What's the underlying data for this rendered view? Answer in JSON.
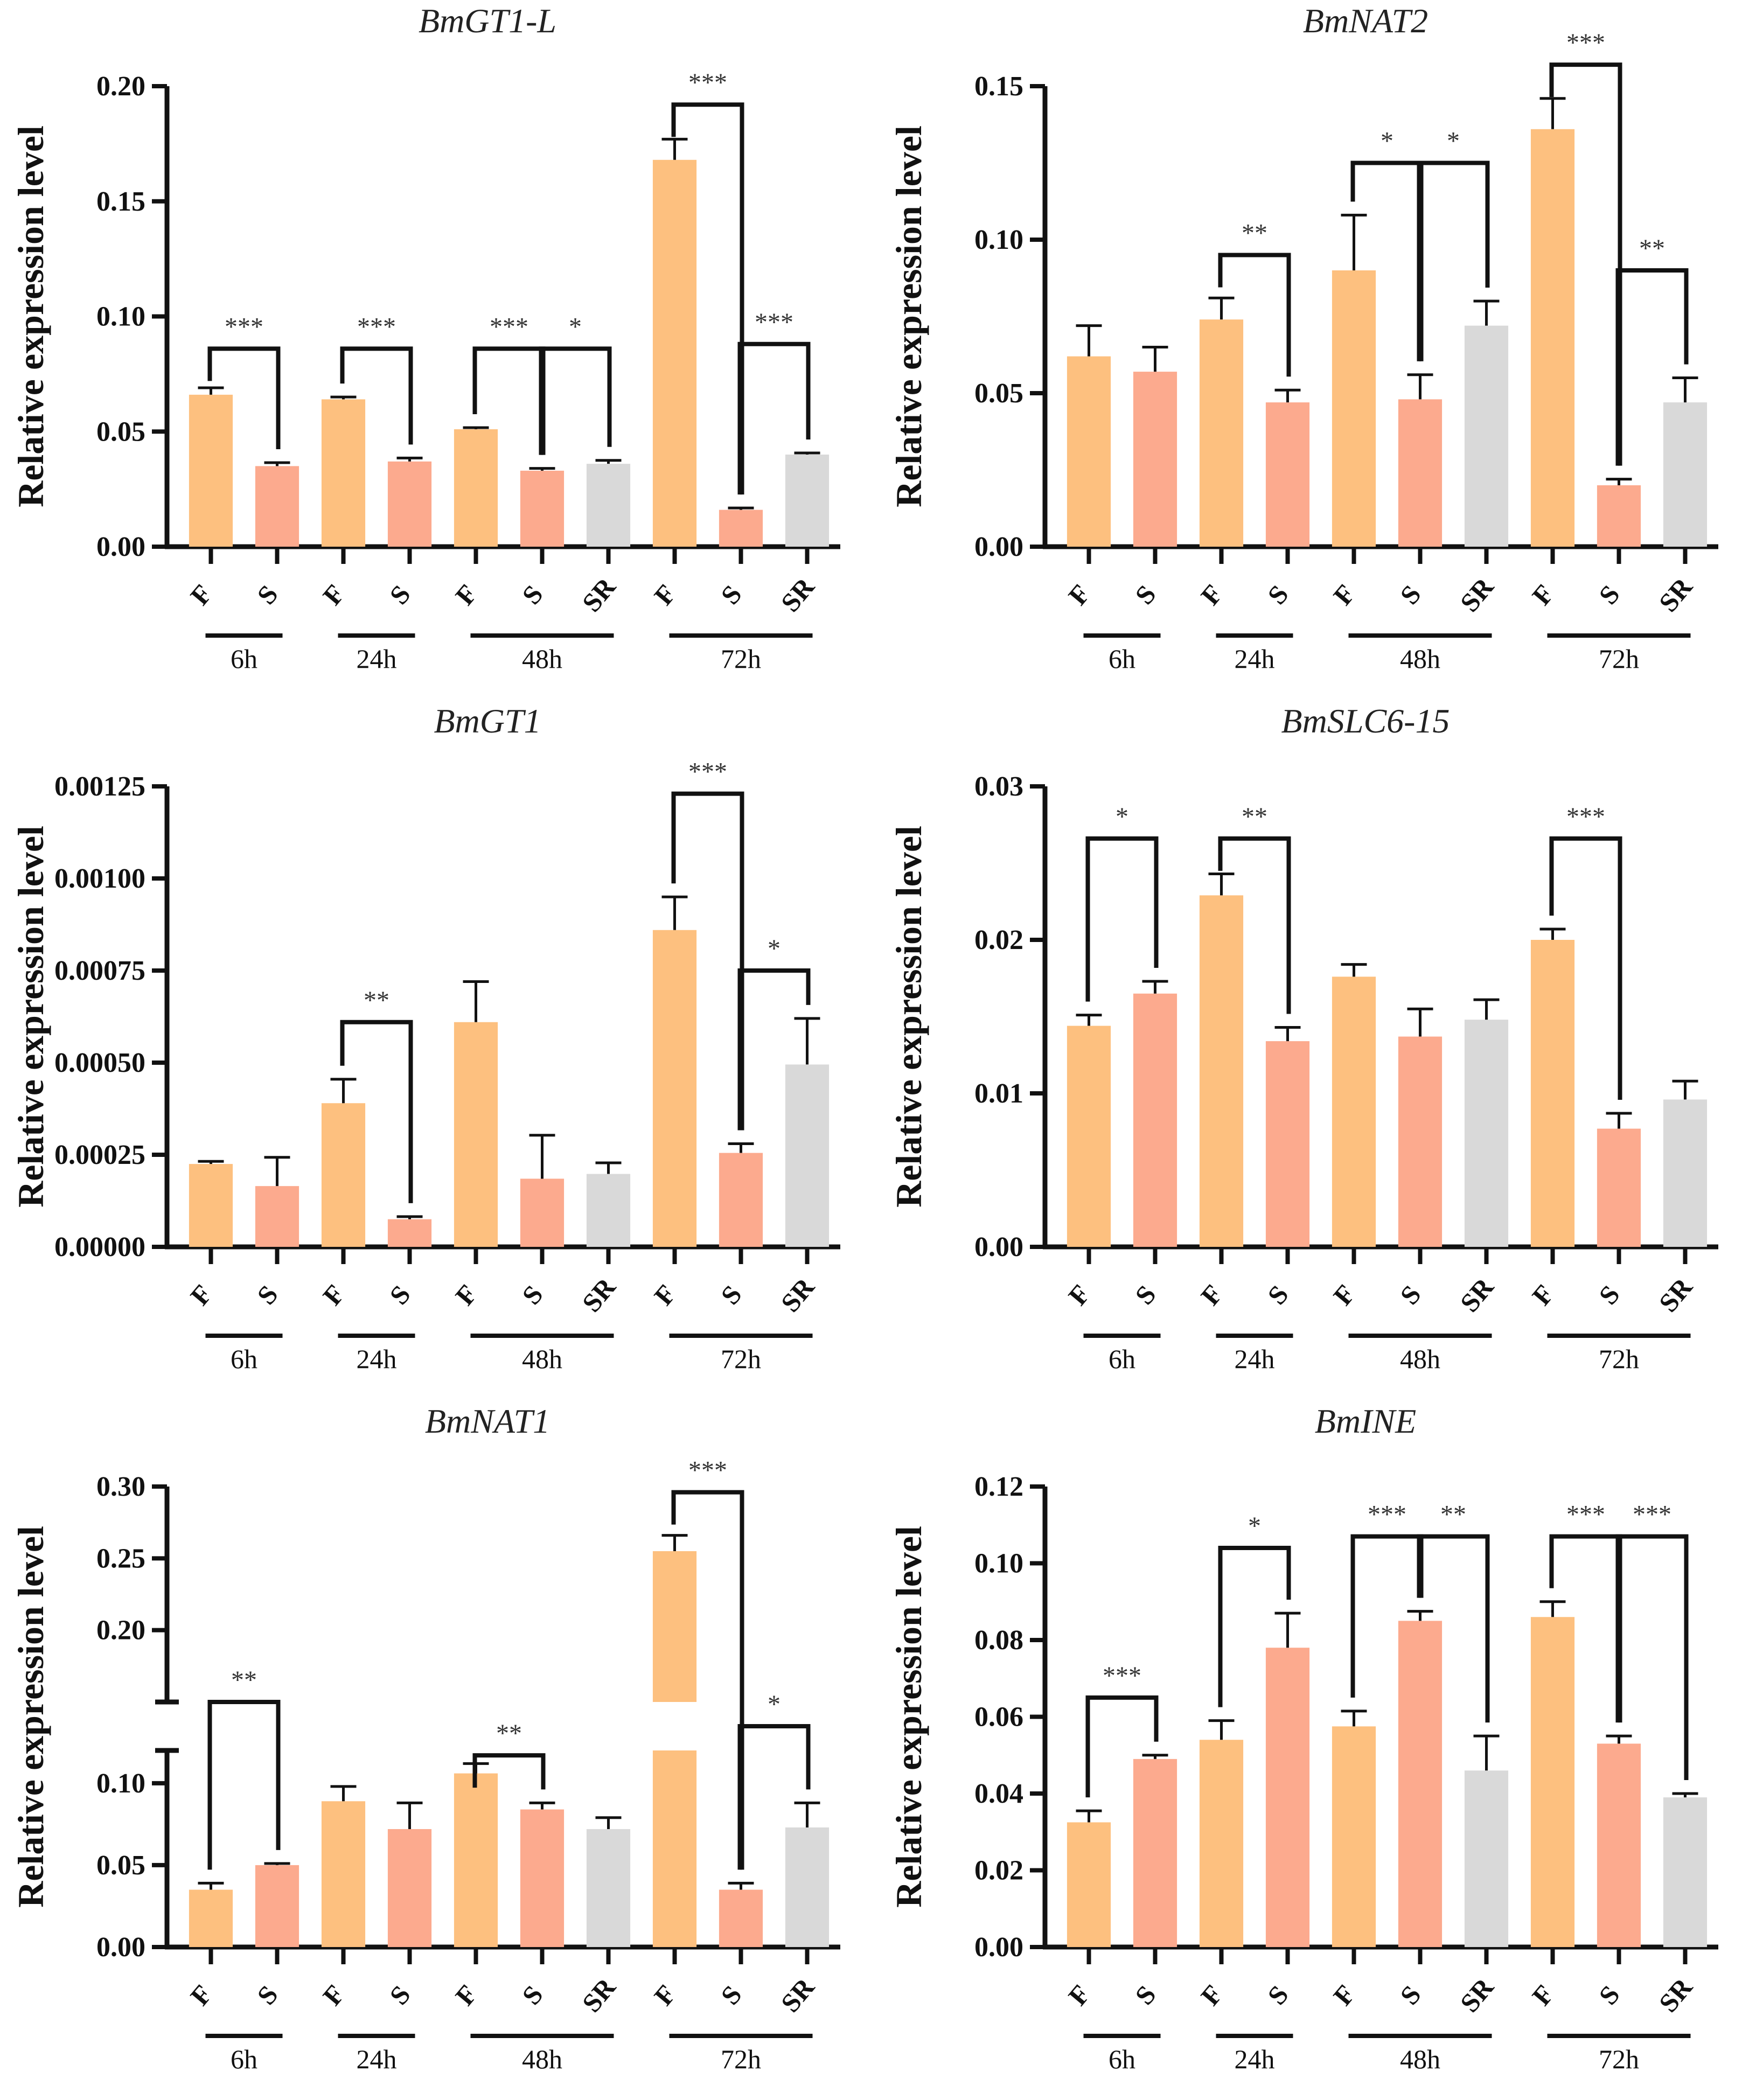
{
  "figure": {
    "ylabel": "Relative expression level",
    "colors": {
      "F": "#FDC07F",
      "S": "#FCAA8E",
      "SR": "#D9D9D9"
    }
  },
  "chart_data": [
    {
      "type": "bar",
      "title": "BmGT1-L",
      "ylabel": "Relative expression level",
      "ylim": [
        0,
        0.2
      ],
      "yticks": [
        "0.00",
        "0.05",
        "0.10",
        "0.15",
        "0.20"
      ],
      "ytick_values": [
        0,
        0.05,
        0.1,
        0.15,
        0.2
      ],
      "groups": [
        {
          "label": "6h",
          "bars": [
            {
              "cat": "F",
              "value": 0.066,
              "err": 0.003
            },
            {
              "cat": "S",
              "value": 0.035,
              "err": 0.0015
            }
          ]
        },
        {
          "label": "24h",
          "bars": [
            {
              "cat": "F",
              "value": 0.064,
              "err": 0.001
            },
            {
              "cat": "S",
              "value": 0.037,
              "err": 0.0015
            }
          ]
        },
        {
          "label": "48h",
          "bars": [
            {
              "cat": "F",
              "value": 0.051,
              "err": 0.0007
            },
            {
              "cat": "S",
              "value": 0.033,
              "err": 0.001
            },
            {
              "cat": "SR",
              "value": 0.036,
              "err": 0.0015
            }
          ]
        },
        {
          "label": "72h",
          "bars": [
            {
              "cat": "F",
              "value": 0.168,
              "err": 0.009
            },
            {
              "cat": "S",
              "value": 0.016,
              "err": 0.0008
            },
            {
              "cat": "SR",
              "value": 0.04,
              "err": 0.0007
            }
          ]
        }
      ],
      "significance": [
        {
          "from": 0,
          "to": 1,
          "y": 0.086,
          "label": "***"
        },
        {
          "from": 2,
          "to": 3,
          "y": 0.086,
          "label": "***"
        },
        {
          "from": 4,
          "to": 5,
          "y": 0.086,
          "label": "***"
        },
        {
          "from": 5,
          "to": 6,
          "y": 0.086,
          "label": "*"
        },
        {
          "from": 7,
          "to": 8,
          "y": 0.192,
          "label": "***"
        },
        {
          "from": 8,
          "to": 9,
          "y": 0.088,
          "label": "***"
        }
      ]
    },
    {
      "type": "bar",
      "title": "BmNAT2",
      "ylabel": "Relative expression level",
      "ylim": [
        0,
        0.15
      ],
      "yticks": [
        "0.00",
        "0.05",
        "0.10",
        "0.15"
      ],
      "ytick_values": [
        0,
        0.05,
        0.1,
        0.15
      ],
      "groups": [
        {
          "label": "6h",
          "bars": [
            {
              "cat": "F",
              "value": 0.062,
              "err": 0.01
            },
            {
              "cat": "S",
              "value": 0.057,
              "err": 0.008
            }
          ]
        },
        {
          "label": "24h",
          "bars": [
            {
              "cat": "F",
              "value": 0.074,
              "err": 0.007
            },
            {
              "cat": "S",
              "value": 0.047,
              "err": 0.004
            }
          ]
        },
        {
          "label": "48h",
          "bars": [
            {
              "cat": "F",
              "value": 0.09,
              "err": 0.018
            },
            {
              "cat": "S",
              "value": 0.048,
              "err": 0.008
            },
            {
              "cat": "SR",
              "value": 0.072,
              "err": 0.008
            }
          ]
        },
        {
          "label": "72h",
          "bars": [
            {
              "cat": "F",
              "value": 0.136,
              "err": 0.01
            },
            {
              "cat": "S",
              "value": 0.02,
              "err": 0.002
            },
            {
              "cat": "SR",
              "value": 0.047,
              "err": 0.008
            }
          ]
        }
      ],
      "significance": [
        {
          "from": 2,
          "to": 3,
          "y": 0.095,
          "label": "**"
        },
        {
          "from": 4,
          "to": 5,
          "y": 0.125,
          "label": "*"
        },
        {
          "from": 5,
          "to": 6,
          "y": 0.125,
          "label": "*"
        },
        {
          "from": 7,
          "to": 8,
          "y": 0.157,
          "label": "***"
        },
        {
          "from": 8,
          "to": 9,
          "y": 0.09,
          "label": "**"
        }
      ]
    },
    {
      "type": "bar",
      "title": "BmGT1",
      "ylabel": "Relative expression level",
      "ylim": [
        0,
        0.00125
      ],
      "yticks": [
        "0.00000",
        "0.00025",
        "0.00050",
        "0.00075",
        "0.00100",
        "0.00125"
      ],
      "ytick_values": [
        0,
        0.00025,
        0.0005,
        0.00075,
        0.001,
        0.00125
      ],
      "groups": [
        {
          "label": "6h",
          "bars": [
            {
              "cat": "F",
              "value": 0.000225,
              "err": 7e-06
            },
            {
              "cat": "S",
              "value": 0.000165,
              "err": 7.8e-05
            }
          ]
        },
        {
          "label": "24h",
          "bars": [
            {
              "cat": "F",
              "value": 0.00039,
              "err": 6.5e-05
            },
            {
              "cat": "S",
              "value": 7.5e-05,
              "err": 7e-06
            }
          ]
        },
        {
          "label": "48h",
          "bars": [
            {
              "cat": "F",
              "value": 0.00061,
              "err": 0.00011
            },
            {
              "cat": "S",
              "value": 0.000185,
              "err": 0.000118
            },
            {
              "cat": "SR",
              "value": 0.000198,
              "err": 3e-05
            }
          ]
        },
        {
          "label": "72h",
          "bars": [
            {
              "cat": "F",
              "value": 0.00086,
              "err": 9e-05
            },
            {
              "cat": "S",
              "value": 0.000255,
              "err": 2.5e-05
            },
            {
              "cat": "SR",
              "value": 0.000495,
              "err": 0.000125
            }
          ]
        }
      ],
      "significance": [
        {
          "from": 2,
          "to": 3,
          "y": 0.00061,
          "label": "**"
        },
        {
          "from": 7,
          "to": 8,
          "y": 0.00123,
          "label": "***"
        },
        {
          "from": 8,
          "to": 9,
          "y": 0.00075,
          "label": "*"
        }
      ]
    },
    {
      "type": "bar",
      "title": "BmSLC6-15",
      "ylabel": "Relative expression level",
      "ylim": [
        0,
        0.03
      ],
      "yticks": [
        "0.00",
        "0.01",
        "0.02",
        "0.03"
      ],
      "ytick_values": [
        0,
        0.01,
        0.02,
        0.03
      ],
      "groups": [
        {
          "label": "6h",
          "bars": [
            {
              "cat": "F",
              "value": 0.0144,
              "err": 0.0007
            },
            {
              "cat": "S",
              "value": 0.0165,
              "err": 0.0008
            }
          ]
        },
        {
          "label": "24h",
          "bars": [
            {
              "cat": "F",
              "value": 0.0229,
              "err": 0.0014
            },
            {
              "cat": "S",
              "value": 0.0134,
              "err": 0.0009
            }
          ]
        },
        {
          "label": "48h",
          "bars": [
            {
              "cat": "F",
              "value": 0.0176,
              "err": 0.0008
            },
            {
              "cat": "S",
              "value": 0.0137,
              "err": 0.0018
            },
            {
              "cat": "SR",
              "value": 0.0148,
              "err": 0.0013
            }
          ]
        },
        {
          "label": "72h",
          "bars": [
            {
              "cat": "F",
              "value": 0.02,
              "err": 0.0007
            },
            {
              "cat": "S",
              "value": 0.0077,
              "err": 0.001
            },
            {
              "cat": "SR",
              "value": 0.0096,
              "err": 0.0012
            }
          ]
        }
      ],
      "significance": [
        {
          "from": 0,
          "to": 1,
          "y": 0.0266,
          "label": "*"
        },
        {
          "from": 2,
          "to": 3,
          "y": 0.0266,
          "label": "**"
        },
        {
          "from": 7,
          "to": 8,
          "y": 0.0266,
          "label": "***"
        }
      ]
    },
    {
      "type": "bar",
      "title": "BmNAT1",
      "ylabel": "Relative expression level",
      "ylim": [
        0,
        0.3
      ],
      "axis_break": {
        "lower": [
          0,
          0.12
        ],
        "upper": [
          0.15,
          0.3
        ]
      },
      "yticks": [
        "0.00",
        "0.05",
        "0.10",
        "0.20",
        "0.25",
        "0.30"
      ],
      "ytick_values": [
        0,
        0.05,
        0.1,
        0.2,
        0.25,
        0.3
      ],
      "groups": [
        {
          "label": "6h",
          "bars": [
            {
              "cat": "F",
              "value": 0.035,
              "err": 0.004
            },
            {
              "cat": "S",
              "value": 0.05,
              "err": 0.001
            }
          ]
        },
        {
          "label": "24h",
          "bars": [
            {
              "cat": "F",
              "value": 0.089,
              "err": 0.009
            },
            {
              "cat": "S",
              "value": 0.072,
              "err": 0.016
            }
          ]
        },
        {
          "label": "48h",
          "bars": [
            {
              "cat": "F",
              "value": 0.106,
              "err": 0.006
            },
            {
              "cat": "S",
              "value": 0.084,
              "err": 0.004
            },
            {
              "cat": "SR",
              "value": 0.072,
              "err": 0.007
            }
          ]
        },
        {
          "label": "72h",
          "bars": [
            {
              "cat": "F",
              "value": 0.255,
              "err": 0.011
            },
            {
              "cat": "S",
              "value": 0.035,
              "err": 0.004
            },
            {
              "cat": "SR",
              "value": 0.073,
              "err": 0.015
            }
          ]
        }
      ],
      "significance": [
        {
          "from": 0,
          "to": 1,
          "y": 0.15,
          "label": "**"
        },
        {
          "from": 4,
          "to": 5,
          "y": 0.117,
          "label": "**"
        },
        {
          "from": 7,
          "to": 8,
          "y": 0.296,
          "label": "***"
        },
        {
          "from": 8,
          "to": 9,
          "y": 0.148,
          "label": "*"
        }
      ]
    },
    {
      "type": "bar",
      "title": "BmINE",
      "ylabel": "Relative expression level",
      "ylim": [
        0,
        0.12
      ],
      "yticks": [
        "0.00",
        "0.02",
        "0.04",
        "0.06",
        "0.08",
        "0.10",
        "0.12"
      ],
      "ytick_values": [
        0,
        0.02,
        0.04,
        0.06,
        0.08,
        0.1,
        0.12
      ],
      "groups": [
        {
          "label": "6h",
          "bars": [
            {
              "cat": "F",
              "value": 0.0325,
              "err": 0.003
            },
            {
              "cat": "S",
              "value": 0.049,
              "err": 0.001
            }
          ]
        },
        {
          "label": "24h",
          "bars": [
            {
              "cat": "F",
              "value": 0.054,
              "err": 0.005
            },
            {
              "cat": "S",
              "value": 0.078,
              "err": 0.009
            }
          ]
        },
        {
          "label": "48h",
          "bars": [
            {
              "cat": "F",
              "value": 0.0575,
              "err": 0.004
            },
            {
              "cat": "S",
              "value": 0.085,
              "err": 0.0025
            },
            {
              "cat": "SR",
              "value": 0.046,
              "err": 0.009
            }
          ]
        },
        {
          "label": "72h",
          "bars": [
            {
              "cat": "F",
              "value": 0.086,
              "err": 0.004
            },
            {
              "cat": "S",
              "value": 0.053,
              "err": 0.002
            },
            {
              "cat": "SR",
              "value": 0.039,
              "err": 0.001
            }
          ]
        }
      ],
      "significance": [
        {
          "from": 0,
          "to": 1,
          "y": 0.065,
          "label": "***"
        },
        {
          "from": 2,
          "to": 3,
          "y": 0.104,
          "label": "*"
        },
        {
          "from": 4,
          "to": 5,
          "y": 0.107,
          "label": "***"
        },
        {
          "from": 5,
          "to": 6,
          "y": 0.107,
          "label": "**"
        },
        {
          "from": 7,
          "to": 8,
          "y": 0.107,
          "label": "***"
        },
        {
          "from": 8,
          "to": 9,
          "y": 0.107,
          "label": "***"
        }
      ]
    }
  ]
}
